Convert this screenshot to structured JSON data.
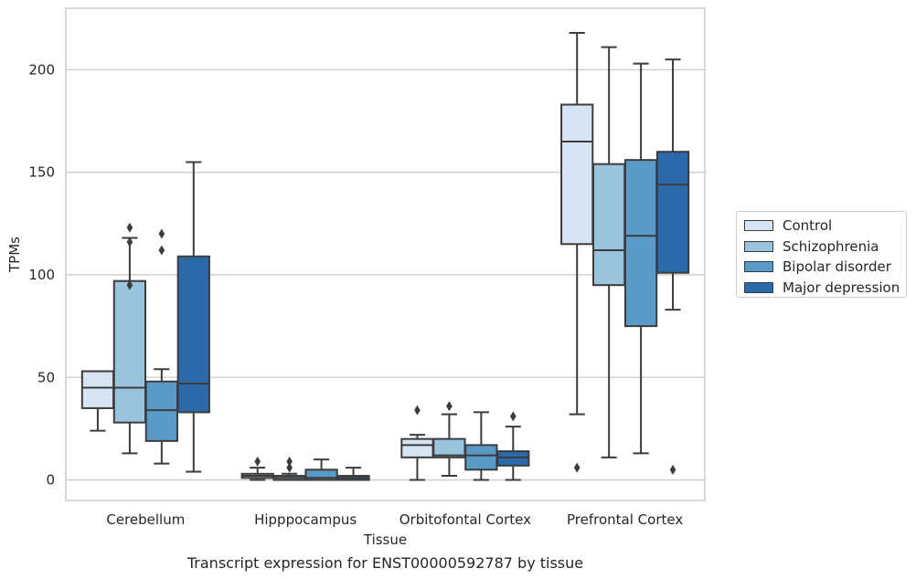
{
  "chart_data": {
    "type": "boxplot",
    "title": "Transcript expression for ENST00000592787 by tissue",
    "xlabel": "Tissue",
    "ylabel": "TPMs",
    "ylim": [
      -10,
      230
    ],
    "yticks": [
      0,
      50,
      100,
      150,
      200
    ],
    "grid": "horizontal",
    "legend_position": "right",
    "categories": [
      "Cerebellum",
      "Hipppocampus",
      "Orbitofontal Cortex",
      "Prefrontal Cortex"
    ],
    "series": [
      {
        "name": "Control",
        "color": "#d6e5f4",
        "boxes": [
          {
            "whisker_low": 24,
            "q1": 35,
            "median": 45,
            "q3": 53,
            "whisker_high": 53,
            "outliers": []
          },
          {
            "whisker_low": 0,
            "q1": 1,
            "median": 2,
            "q3": 3,
            "whisker_high": 6,
            "outliers": [
              9
            ]
          },
          {
            "whisker_low": 0,
            "q1": 11,
            "median": 17,
            "q3": 20,
            "whisker_high": 22,
            "outliers": [
              34
            ]
          },
          {
            "whisker_low": 32,
            "q1": 115,
            "median": 165,
            "q3": 183,
            "whisker_high": 218,
            "outliers": [
              6
            ]
          }
        ]
      },
      {
        "name": "Schizophrenia",
        "color": "#9ac3de",
        "boxes": [
          {
            "whisker_low": 13,
            "q1": 28,
            "median": 45,
            "q3": 97,
            "whisker_high": 118,
            "outliers": [
              95,
              116,
              123
            ]
          },
          {
            "whisker_low": 0,
            "q1": 0,
            "median": 1,
            "q3": 2,
            "whisker_high": 3,
            "outliers": [
              6,
              9
            ]
          },
          {
            "whisker_low": 2,
            "q1": 11,
            "median": 12,
            "q3": 20,
            "whisker_high": 32,
            "outliers": [
              36
            ]
          },
          {
            "whisker_low": 11,
            "q1": 95,
            "median": 112,
            "q3": 154,
            "whisker_high": 211,
            "outliers": []
          }
        ]
      },
      {
        "name": "Bipolar disorder",
        "color": "#5a9ac8",
        "boxes": [
          {
            "whisker_low": 8,
            "q1": 19,
            "median": 34,
            "q3": 48,
            "whisker_high": 54,
            "outliers": [
              112,
              120
            ]
          },
          {
            "whisker_low": 0,
            "q1": 0,
            "median": 1,
            "q3": 5,
            "whisker_high": 10,
            "outliers": []
          },
          {
            "whisker_low": 0,
            "q1": 5,
            "median": 12,
            "q3": 17,
            "whisker_high": 33,
            "outliers": []
          },
          {
            "whisker_low": 13,
            "q1": 75,
            "median": 119,
            "q3": 156,
            "whisker_high": 203,
            "outliers": []
          }
        ]
      },
      {
        "name": "Major depression",
        "color": "#2a6aa8",
        "boxes": [
          {
            "whisker_low": 4,
            "q1": 33,
            "median": 47,
            "q3": 109,
            "whisker_high": 155,
            "outliers": []
          },
          {
            "whisker_low": 0,
            "q1": 0,
            "median": 1,
            "q3": 2,
            "whisker_high": 6,
            "outliers": []
          },
          {
            "whisker_low": 0,
            "q1": 7,
            "median": 11,
            "q3": 14,
            "whisker_high": 26,
            "outliers": [
              31
            ]
          },
          {
            "whisker_low": 83,
            "q1": 101,
            "median": 144,
            "q3": 160,
            "whisker_high": 205,
            "outliers": [
              5
            ]
          }
        ]
      }
    ]
  }
}
